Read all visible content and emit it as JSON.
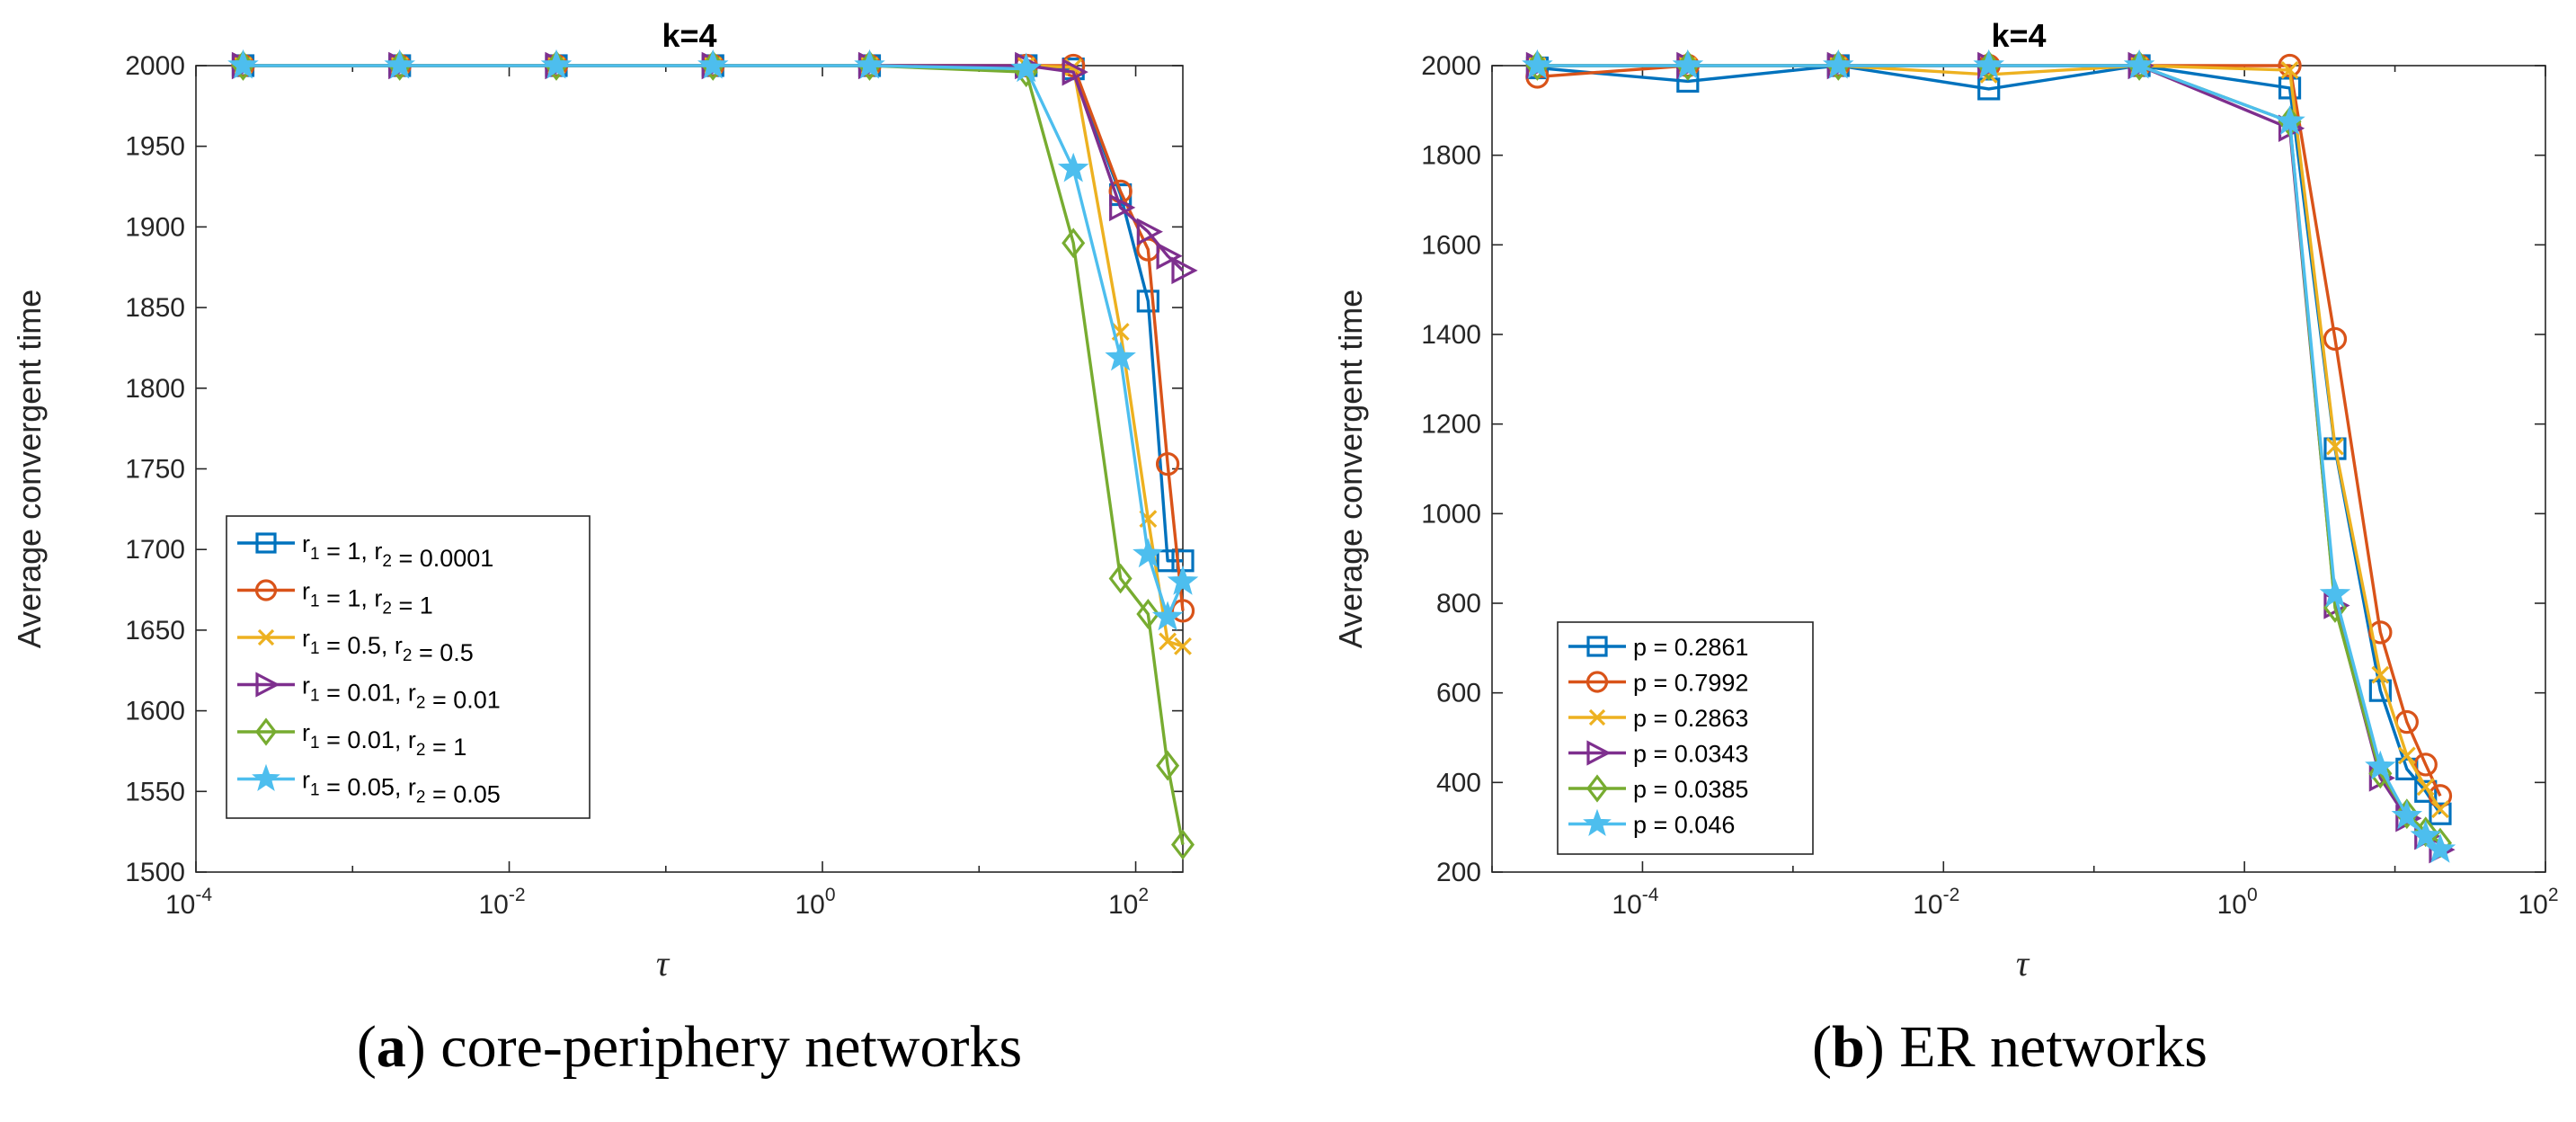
{
  "chart_data": [
    {
      "type": "line",
      "title": "k=4",
      "caption_label": "a",
      "caption_text": "core-periphery networks",
      "xlabel": "τ",
      "ylabel": "Average convergent time",
      "xscale": "log",
      "xlim": [
        0.0001,
        200
      ],
      "ylim": [
        1500,
        2000
      ],
      "xticks": [
        0.0001,
        0.01,
        1,
        100
      ],
      "xtick_labels": [
        "10^-4",
        "10^-2",
        "10^0",
        "10^2"
      ],
      "yticks": [
        1500,
        1550,
        1600,
        1650,
        1700,
        1750,
        1800,
        1850,
        1900,
        1950,
        2000
      ],
      "ytick_labels": [
        "1500",
        "1550",
        "1600",
        "1650",
        "1700",
        "1750",
        "1800",
        "1850",
        "1900",
        "1950",
        "2000"
      ],
      "legend_location": "lower-left",
      "x": [
        0.0002,
        0.002,
        0.02,
        0.2,
        2,
        20,
        40,
        80,
        120,
        160,
        200
      ],
      "series": [
        {
          "name": "r_1 = 1, r_2 = 0.0001",
          "label_parts": [
            [
              "r",
              "1"
            ],
            [
              " = 1, r",
              "2"
            ],
            [
              " = 0.0001",
              ""
            ]
          ],
          "color": "#0072BD",
          "marker": "square",
          "values": [
            2000,
            2000,
            2000,
            2000,
            2000,
            2000,
            1998,
            1920,
            1854,
            1693,
            1693
          ]
        },
        {
          "name": "r_1 = 1, r_2 = 1",
          "label_parts": [
            [
              "r",
              "1"
            ],
            [
              " = 1, r",
              "2"
            ],
            [
              " = 1",
              ""
            ]
          ],
          "color": "#D95319",
          "marker": "circle",
          "values": [
            2000,
            2000,
            2000,
            2000,
            2000,
            2000,
            2000,
            1922,
            1886,
            1753,
            1662
          ]
        },
        {
          "name": "r_1 = 0.5, r_2 = 0.5",
          "label_parts": [
            [
              "r",
              "1"
            ],
            [
              " = 0.5, r",
              "2"
            ],
            [
              " = 0.5",
              ""
            ]
          ],
          "color": "#EDB120",
          "marker": "x",
          "values": [
            2000,
            2000,
            2000,
            2000,
            2000,
            2000,
            1999,
            1835,
            1719,
            1643,
            1640
          ]
        },
        {
          "name": "r_1 = 0.01, r_2 = 0.01",
          "label_parts": [
            [
              "r",
              "1"
            ],
            [
              " = 0.01, r",
              "2"
            ],
            [
              " = 0.01",
              ""
            ]
          ],
          "color": "#7E2F8E",
          "marker": "triangle-right",
          "values": [
            2000,
            2000,
            2000,
            2000,
            2000,
            2000,
            1996,
            1912,
            1897,
            1882,
            1873
          ]
        },
        {
          "name": "r_1 = 0.01, r_2 = 1",
          "label_parts": [
            [
              "r",
              "1"
            ],
            [
              " = 0.01, r",
              "2"
            ],
            [
              " = 1",
              ""
            ]
          ],
          "color": "#77AC30",
          "marker": "diamond",
          "values": [
            2000,
            2000,
            2000,
            2000,
            2000,
            1996,
            1890,
            1682,
            1660,
            1566,
            1517
          ]
        },
        {
          "name": "r_1 = 0.05, r_2 = 0.05",
          "label_parts": [
            [
              "r",
              "1"
            ],
            [
              " = 0.05, r",
              "2"
            ],
            [
              " = 0.05",
              ""
            ]
          ],
          "color": "#4DBEEE",
          "marker": "star",
          "values": [
            2000,
            2000,
            2000,
            2000,
            2000,
            1998,
            1936,
            1819,
            1697,
            1658,
            1680
          ]
        }
      ]
    },
    {
      "type": "line",
      "title": "k=4",
      "caption_label": "b",
      "caption_text": "ER networks",
      "xlabel": "τ",
      "ylabel": "Average convergent time",
      "xscale": "log",
      "xlim": [
        1e-05,
        100
      ],
      "ylim": [
        200,
        2000
      ],
      "xticks": [
        0.0001,
        0.01,
        1,
        100
      ],
      "xtick_labels": [
        "10^-4",
        "10^-2",
        "10^0",
        "10^2"
      ],
      "yticks": [
        200,
        400,
        600,
        800,
        1000,
        1200,
        1400,
        1600,
        1800,
        2000
      ],
      "ytick_labels": [
        "200",
        "400",
        "600",
        "800",
        "1000",
        "1200",
        "1400",
        "1600",
        "1800",
        "2000"
      ],
      "legend_location": "lower-left",
      "x": [
        2e-05,
        0.0002,
        0.002,
        0.02,
        0.2,
        2,
        4,
        8,
        12,
        16,
        20
      ],
      "series": [
        {
          "name": "p = 0.2861",
          "label_parts": [
            [
              "p = 0.2861",
              ""
            ]
          ],
          "color": "#0072BD",
          "marker": "square",
          "values": [
            1995,
            1965,
            2000,
            1948,
            2000,
            1950,
            1145,
            605,
            430,
            380,
            330
          ]
        },
        {
          "name": "p = 0.7992",
          "label_parts": [
            [
              "p = 0.7992",
              ""
            ]
          ],
          "color": "#D95319",
          "marker": "circle",
          "values": [
            1975,
            2000,
            2000,
            2000,
            2000,
            2000,
            1390,
            735,
            535,
            440,
            370
          ]
        },
        {
          "name": "p = 0.2863",
          "label_parts": [
            [
              "p = 0.2863",
              ""
            ]
          ],
          "color": "#EDB120",
          "marker": "x",
          "values": [
            2000,
            2000,
            2000,
            1980,
            2000,
            1990,
            1150,
            640,
            460,
            390,
            340
          ]
        },
        {
          "name": "p = 0.0343",
          "label_parts": [
            [
              "p = 0.0343",
              ""
            ]
          ],
          "color": "#7E2F8E",
          "marker": "triangle-right",
          "values": [
            2000,
            2000,
            2000,
            2000,
            2000,
            1860,
            795,
            410,
            320,
            280,
            250
          ]
        },
        {
          "name": "p = 0.0385",
          "label_parts": [
            [
              "p = 0.0385",
              ""
            ]
          ],
          "color": "#77AC30",
          "marker": "diamond",
          "values": [
            2000,
            2000,
            2000,
            2000,
            2000,
            1875,
            790,
            420,
            330,
            290,
            265
          ]
        },
        {
          "name": "p = 0.046",
          "label_parts": [
            [
              "p = 0.046",
              ""
            ]
          ],
          "color": "#4DBEEE",
          "marker": "star",
          "values": [
            2000,
            2000,
            2000,
            2000,
            2000,
            1875,
            820,
            435,
            325,
            280,
            250
          ]
        }
      ]
    }
  ]
}
